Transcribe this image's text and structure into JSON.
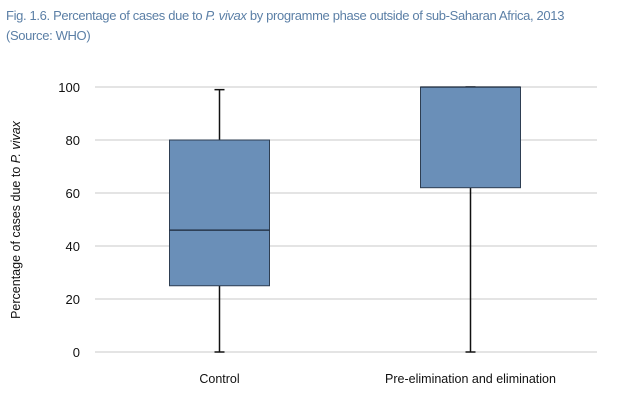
{
  "title": {
    "prefix": "Fig. 1.6. Percentage of cases due to ",
    "italic": "P. vivax",
    "suffix": " by programme phase outside of sub-Saharan Africa, 2013",
    "line2": "(Source: WHO)"
  },
  "chart_data": {
    "type": "box",
    "title": "Fig. 1.6. Percentage of cases due to P. vivax by programme phase outside of sub-Saharan Africa, 2013 (Source: WHO)",
    "xlabel": "",
    "ylabel": "Percentage of cases due to P. vivax",
    "ylabel_prefix": "Percentage of cases due to ",
    "ylabel_italic": "P. vivax",
    "ylim": [
      0,
      100
    ],
    "yticks": [
      0,
      20,
      40,
      60,
      80,
      100
    ],
    "grid": true,
    "categories": [
      "Control",
      "Pre-elimination and elimination"
    ],
    "boxes": [
      {
        "name": "Control",
        "min": 0,
        "q1": 25,
        "median": 46,
        "q3": 80,
        "max": 99
      },
      {
        "name": "Pre-elimination and elimination",
        "min": 0,
        "q1": 62,
        "median": 100,
        "q3": 100,
        "max": 100
      }
    ],
    "colors": {
      "box": "#6a8fb8",
      "edge": "#2e3e52",
      "grid": "#c8c8c8"
    }
  }
}
